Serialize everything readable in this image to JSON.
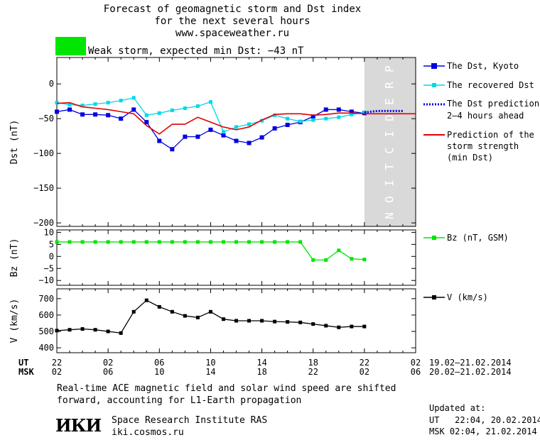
{
  "header": {
    "title_line1": "Forecast of geomagnetic storm and Dst index",
    "title_line2": "for the next several hours",
    "website": "www.spaceweather.ru",
    "storm_label": "Weak storm, expected min Dst: −43 nT",
    "storm_color": "#00e600"
  },
  "legend": {
    "dst_kyoto": "The Dst, Kyoto",
    "recovered_line1": "The recovered Dst",
    "prediction_line1": "The Dst prediction",
    "prediction_line2": "2–4 hours ahead",
    "strength_line1": "Prediction of the",
    "strength_line2": "storm strength",
    "strength_line3": "(min Dst)",
    "bz": "Bz (nT, GSM)",
    "v": "V (km/s)"
  },
  "prediction_letters": [
    "P",
    "R",
    "E",
    "D",
    "I",
    "C",
    "T",
    "I",
    "O",
    "N"
  ],
  "time_axis": {
    "ut_label": "UT",
    "msk_label": "MSK",
    "ut_ticks": [
      "22",
      "02",
      "06",
      "10",
      "14",
      "18",
      "22",
      "02"
    ],
    "msk_ticks": [
      "02",
      "06",
      "10",
      "14",
      "18",
      "22",
      "02",
      "06"
    ],
    "ut_range": "19.02–21.02.2014",
    "msk_range": "20.02–21.02.2014"
  },
  "footer": {
    "note_line1": "Real-time ACE magnetic field and solar wind speed are shifted",
    "note_line2": "forward, accounting for L1-Earth propagation",
    "logo_text": "ИКИ",
    "institute": "Space Research Institute RAS",
    "institute_site": "iki.cosmos.ru",
    "updated_label": "Updated at:",
    "updated_ut": "UT   22:04, 20.02.2014",
    "updated_msk": "MSK 02:04, 21.02.2014"
  },
  "chart_data": [
    {
      "type": "line",
      "ylabel": "Dst (nT)",
      "xlim": [
        0,
        28
      ],
      "ylim": [
        -205,
        38
      ],
      "yticks": [
        0,
        -50,
        -100,
        -150,
        -200
      ],
      "ytick_labels": [
        "0",
        "−50",
        "−100",
        "−150",
        "−200"
      ],
      "prediction_region": [
        24,
        28
      ],
      "series": [
        {
          "name": "The Dst, Kyoto",
          "color": "#0000e0",
          "x": [
            0,
            1,
            2,
            3,
            4,
            5,
            6,
            7,
            8,
            9,
            10,
            11,
            12,
            13,
            14,
            15,
            16,
            17,
            18,
            19,
            20,
            21,
            22,
            23,
            24
          ],
          "y": [
            -40,
            -37,
            -44,
            -44,
            -45,
            -50,
            -37,
            -55,
            -82,
            -94,
            -76,
            -76,
            -66,
            -74,
            -82,
            -85,
            -77,
            -64,
            -59,
            -55,
            -47,
            -37,
            -37,
            -40,
            -42
          ]
        },
        {
          "name": "The recovered Dst",
          "color": "#00d8e8",
          "x": [
            0,
            1,
            2,
            3,
            4,
            5,
            6,
            7,
            8,
            9,
            10,
            11,
            12,
            13,
            14,
            15,
            16,
            17,
            18,
            19,
            20,
            21,
            22,
            23,
            24
          ],
          "y": [
            -27,
            -30,
            -31,
            -29,
            -27,
            -24,
            -20,
            -45,
            -42,
            -38,
            -35,
            -32,
            -26,
            -69,
            -62,
            -58,
            -53,
            -45,
            -50,
            -54,
            -52,
            -50,
            -48,
            -44,
            -41
          ]
        },
        {
          "name": "The Dst prediction 2–4 hours ahead",
          "color": "#0000e0",
          "x": [
            24,
            25,
            26,
            27
          ],
          "y": [
            -41,
            -39,
            -39,
            -39
          ]
        },
        {
          "name": "Prediction of the storm strength (min Dst)",
          "color": "#e00000",
          "x": [
            0,
            1,
            2,
            3,
            4,
            5,
            6,
            7,
            8,
            9,
            10,
            11,
            12,
            13,
            14,
            15,
            16,
            17,
            18,
            19,
            20,
            21,
            22,
            23,
            24,
            28
          ],
          "y": [
            -28,
            -27,
            -33,
            -35,
            -37,
            -40,
            -43,
            -60,
            -72,
            -58,
            -58,
            -48,
            -55,
            -62,
            -66,
            -62,
            -52,
            -44,
            -43,
            -43,
            -45,
            -44,
            -42,
            -42,
            -43,
            -43
          ]
        }
      ]
    },
    {
      "type": "line",
      "ylabel": "Bz (nT)",
      "xlim": [
        0,
        28
      ],
      "ylim": [
        -12,
        11
      ],
      "yticks": [
        10,
        5,
        0,
        -5,
        -10
      ],
      "ytick_labels": [
        "10",
        "5",
        "0",
        "−5",
        "−10"
      ],
      "series": [
        {
          "name": "Bz (nT, GSM)",
          "color": "#00e600",
          "x": [
            0,
            1,
            2,
            3,
            4,
            5,
            6,
            7,
            8,
            9,
            10,
            11,
            12,
            13,
            14,
            15,
            16,
            17,
            18,
            19,
            20,
            21,
            22,
            23,
            24
          ],
          "y": [
            6,
            6,
            6,
            6,
            6,
            6,
            6,
            6,
            6,
            6,
            6,
            6,
            6,
            6,
            6,
            6,
            6,
            6,
            6,
            6,
            -1.5,
            -1.5,
            2.5,
            -1,
            -1.3
          ]
        }
      ]
    },
    {
      "type": "line",
      "ylabel": "V (km/s)",
      "xlim": [
        0,
        28
      ],
      "ylim": [
        370,
        760
      ],
      "yticks": [
        700,
        600,
        500,
        400
      ],
      "ytick_labels": [
        "700",
        "600",
        "500",
        "400"
      ],
      "series": [
        {
          "name": "V (km/s)",
          "color": "#000000",
          "x": [
            0,
            1,
            2,
            3,
            4,
            5,
            6,
            7,
            8,
            9,
            10,
            11,
            12,
            13,
            14,
            15,
            16,
            17,
            18,
            19,
            20,
            21,
            22,
            23,
            24
          ],
          "y": [
            505,
            510,
            515,
            510,
            500,
            490,
            620,
            690,
            650,
            620,
            595,
            585,
            620,
            575,
            565,
            565,
            565,
            560,
            558,
            555,
            545,
            535,
            525,
            530,
            530
          ]
        }
      ]
    }
  ]
}
